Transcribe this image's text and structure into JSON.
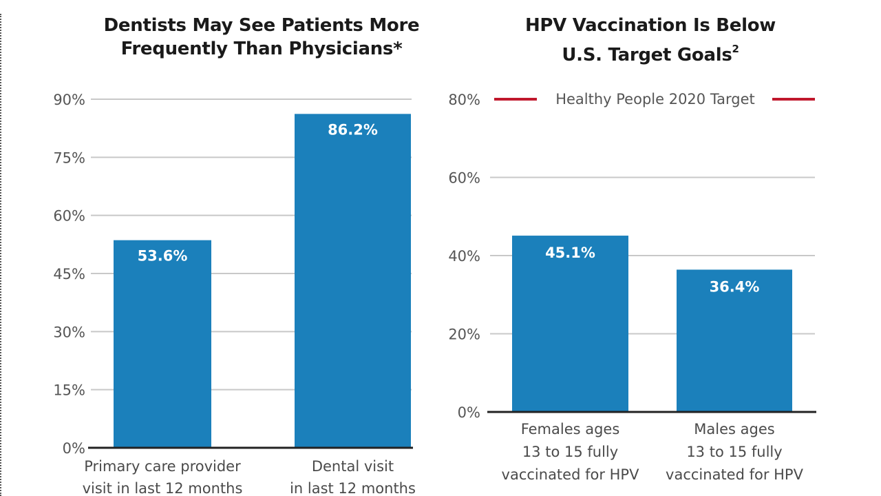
{
  "chart_data": [
    {
      "type": "bar",
      "title": "Dentists May See Patients More Frequently Than Physicians*",
      "title_lines": [
        "Dentists May See Patients More",
        "Frequently Than Physicians*"
      ],
      "xlabel": "",
      "ylabel": "",
      "ylim": [
        0,
        90
      ],
      "yticks": [
        0,
        15,
        30,
        45,
        60,
        75,
        90
      ],
      "ytick_labels": [
        "0%",
        "15%",
        "30%",
        "45%",
        "60%",
        "75%",
        "90%"
      ],
      "grid": true,
      "categories": [
        "Primary care provider visit in last 12 months",
        "Dental visit in last 12 months"
      ],
      "category_lines": [
        [
          "Primary care provider",
          "visit in last 12 months"
        ],
        [
          "Dental visit",
          "in last 12 months"
        ]
      ],
      "values": [
        53.6,
        86.2
      ],
      "data_labels": [
        "53.6%",
        "86.2%"
      ],
      "colors": {
        "bar": "#1b80bb",
        "grid": "#c8c8c8",
        "axis": "#222222"
      }
    },
    {
      "type": "bar",
      "title": "HPV Vaccination Is Below U.S. Target Goals²",
      "title_lines": [
        "HPV Vaccination Is Below",
        "U.S. Target Goals"
      ],
      "title_superscript": "2",
      "xlabel": "",
      "ylabel": "",
      "ylim": [
        0,
        80
      ],
      "yticks": [
        0,
        20,
        40,
        60,
        80
      ],
      "ytick_labels": [
        "0%",
        "20%",
        "40%",
        "60%",
        "80%"
      ],
      "grid": true,
      "categories": [
        "Females ages 13 to 15 fully vaccinated for HPV",
        "Males ages 13 to 15 fully vaccinated for HPV"
      ],
      "category_lines": [
        [
          "Females ages",
          "13 to 15 fully",
          "vaccinated for HPV"
        ],
        [
          "Males ages",
          "13 to 15 fully",
          "vaccinated for HPV"
        ]
      ],
      "values": [
        45.1,
        36.4
      ],
      "data_labels": [
        "45.1%",
        "36.4%"
      ],
      "reference_line": {
        "value": 80,
        "label": "Healthy People 2020 Target",
        "color": "#c0172c"
      },
      "colors": {
        "bar": "#1b80bb",
        "grid": "#c8c8c8",
        "axis": "#222222"
      }
    }
  ]
}
